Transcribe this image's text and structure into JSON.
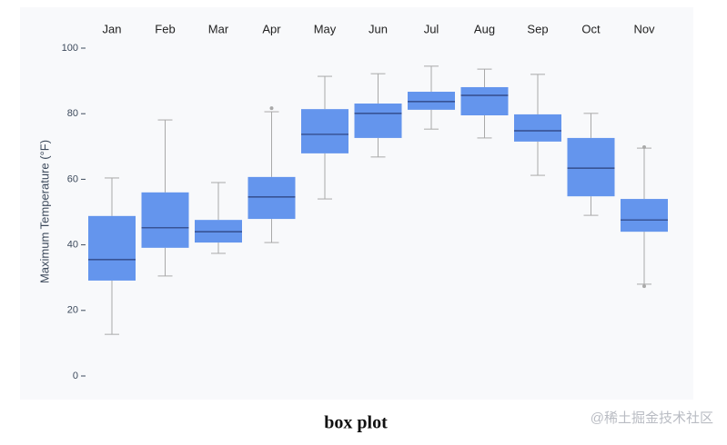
{
  "chart_data": {
    "type": "box",
    "y_label": "Maximum Temperature (°F)",
    "caption": "box plot",
    "watermark": "@稀土掘金技术社区",
    "categories": [
      "Jan",
      "Feb",
      "Mar",
      "Apr",
      "May",
      "Jun",
      "Jul",
      "Aug",
      "Sep",
      "Oct",
      "Nov"
    ],
    "low": [
      12.7,
      30.5,
      37.4,
      40.7,
      54.0,
      66.8,
      75.3,
      72.6,
      61.2,
      49.0,
      28.0
    ],
    "q1": [
      29.1,
      39.1,
      40.7,
      47.9,
      67.9,
      72.6,
      81.2,
      79.5,
      71.5,
      54.8,
      44.0
    ],
    "median": [
      35.5,
      45.2,
      44.0,
      54.6,
      73.7,
      80.1,
      83.7,
      85.6,
      74.8,
      63.4,
      47.6
    ],
    "q3": [
      48.8,
      56.0,
      47.6,
      60.7,
      81.4,
      83.1,
      86.7,
      88.1,
      79.8,
      72.6,
      54.0
    ],
    "high": [
      60.4,
      78.1,
      59.0,
      80.6,
      91.4,
      92.2,
      94.5,
      93.6,
      92.0,
      80.1,
      69.5
    ],
    "outliers": [
      [],
      [],
      [],
      [
        81.7
      ],
      [],
      [],
      [],
      [],
      [],
      [],
      [
        69.8,
        27.4
      ]
    ],
    "color": "#6495ed",
    "median_color": "#2a3f7a",
    "whisker_color": "#a9a9a9",
    "ylim": [
      0,
      100
    ],
    "yticks": [
      0,
      20,
      40,
      60,
      80,
      100
    ]
  }
}
